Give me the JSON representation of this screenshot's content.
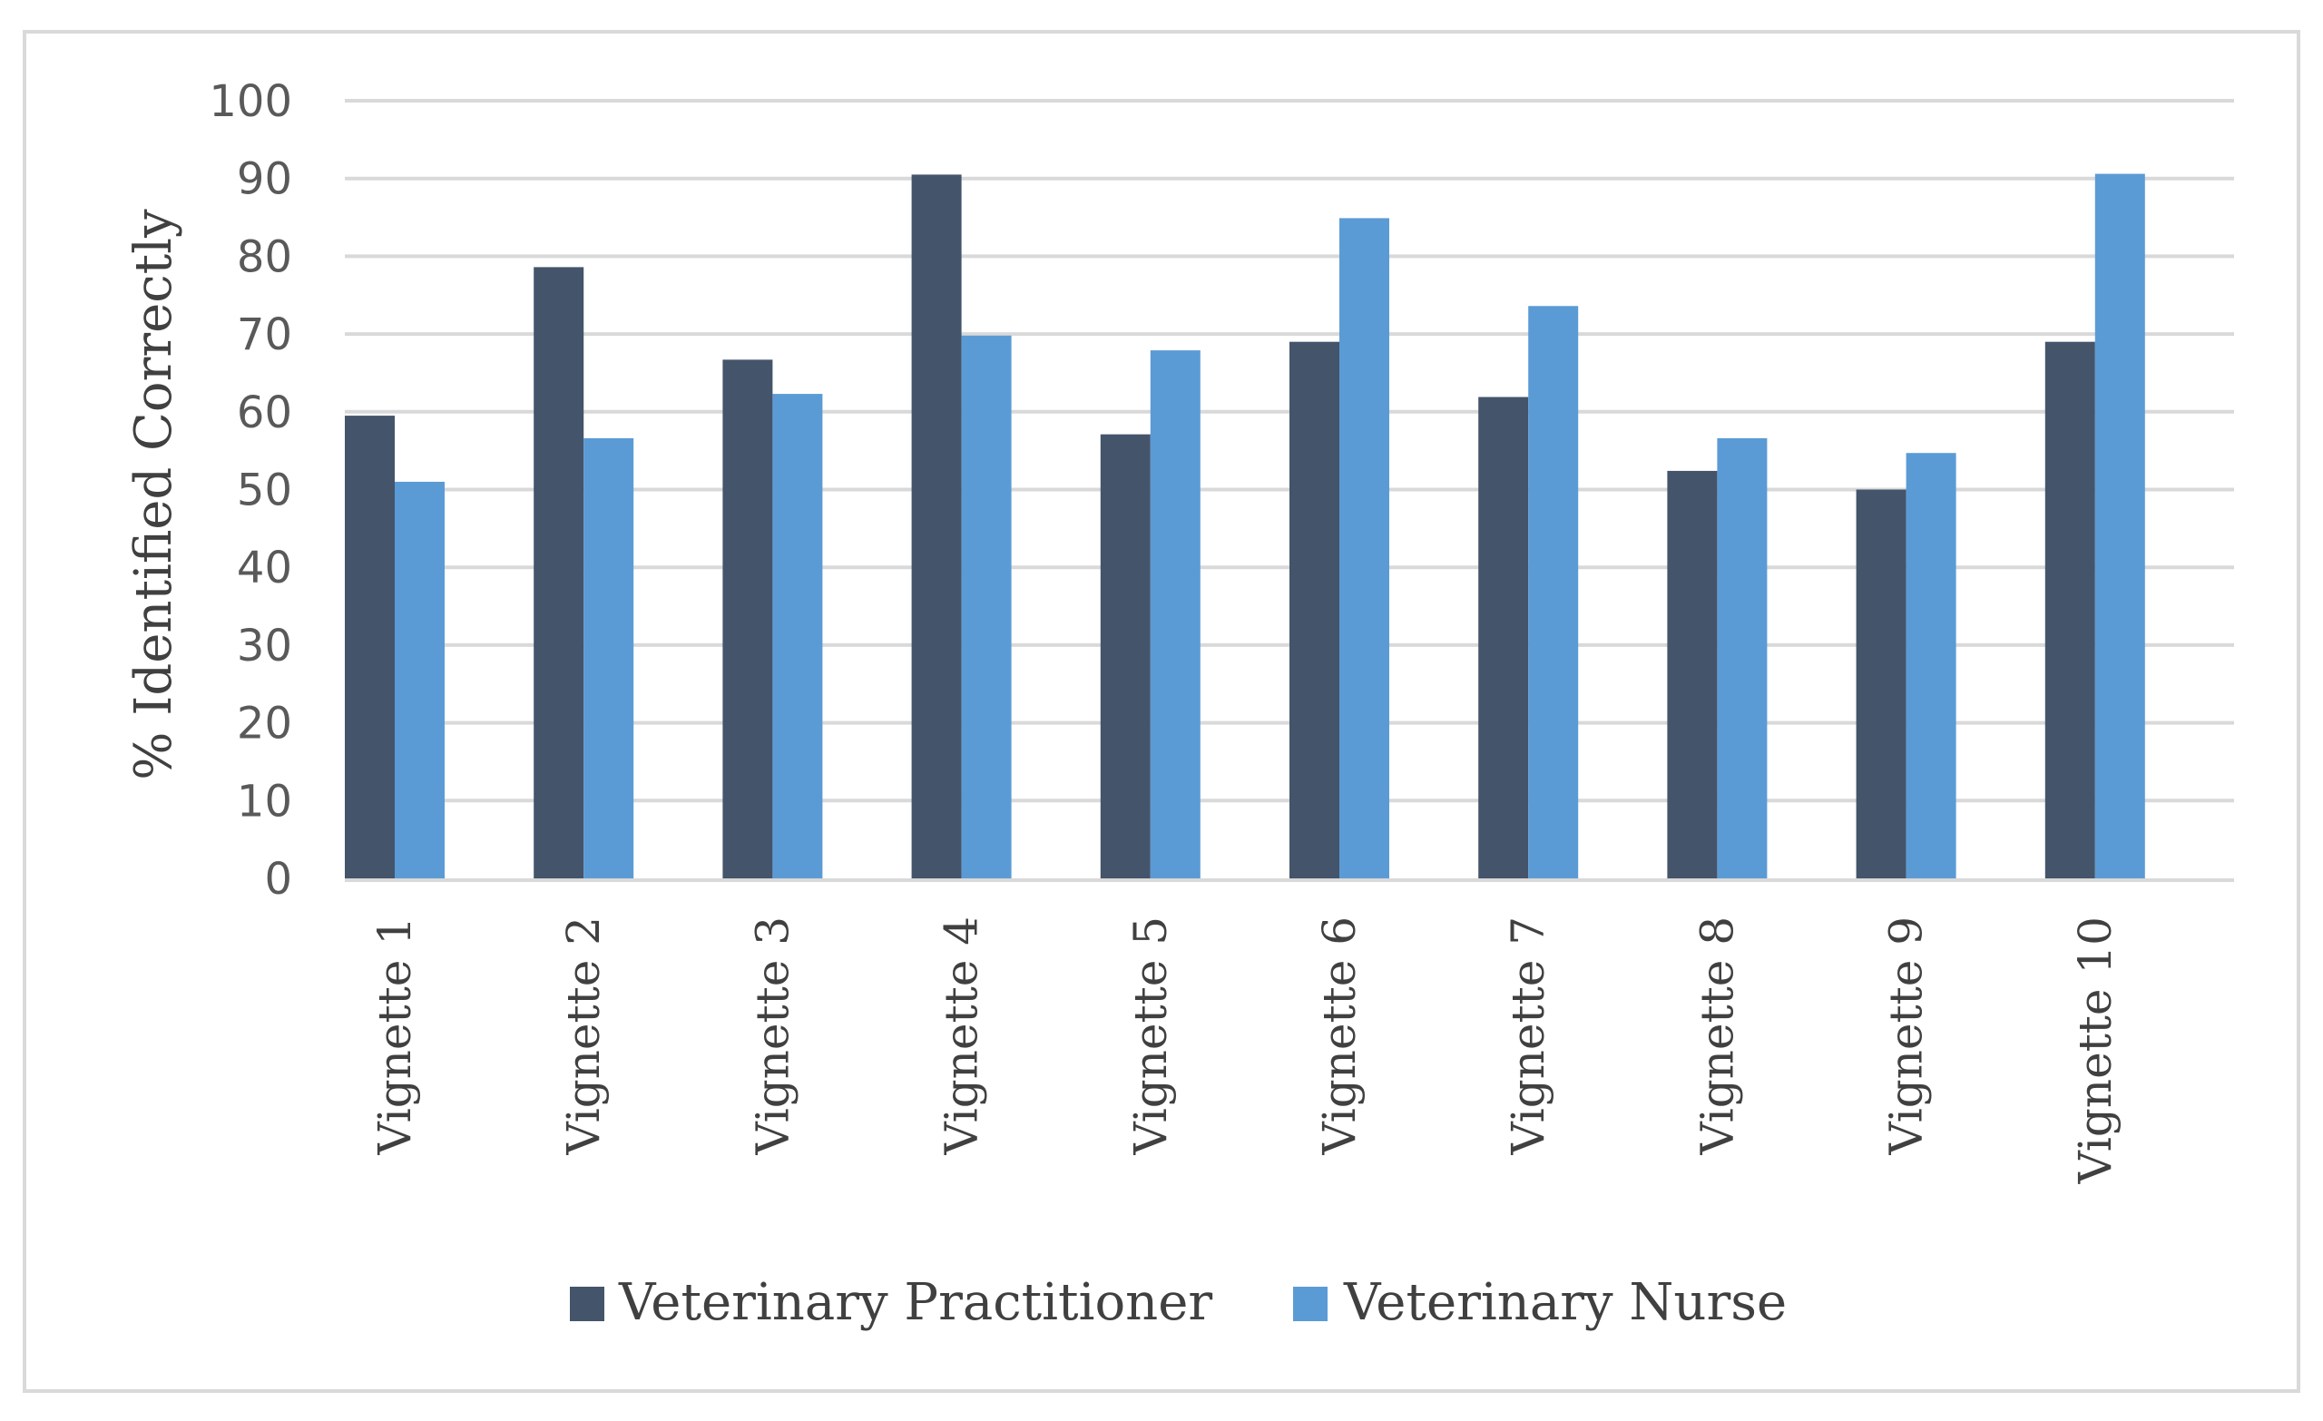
{
  "chart_data": {
    "type": "bar",
    "title": "",
    "xlabel": "",
    "ylabel": "% Identified Correctly",
    "ylim": [
      0,
      100
    ],
    "yticks": [
      0,
      10,
      20,
      30,
      40,
      50,
      60,
      70,
      80,
      90,
      100
    ],
    "grid": true,
    "legend_position": "bottom",
    "categories": [
      "Vignette 1",
      "Vignette 2",
      "Vignette 3",
      "Vignette 4",
      "Vignette 5",
      "Vignette 6",
      "Vignette 7",
      "Vignette 8",
      "Vignette 9",
      "Vignette 10"
    ],
    "series": [
      {
        "name": "Veterinary Practitioner",
        "color": "#44546a",
        "values": [
          59.5,
          78.6,
          66.7,
          90.5,
          57.1,
          69.0,
          61.9,
          52.4,
          50.0,
          69.0
        ]
      },
      {
        "name": "Veterinary Nurse",
        "color": "#5b9bd5",
        "values": [
          51.0,
          56.6,
          62.3,
          69.8,
          67.9,
          84.9,
          73.6,
          56.6,
          54.7,
          90.6
        ]
      }
    ]
  },
  "colors": {
    "gridline": "#d9d9d9",
    "frame": "#d9d9d9",
    "axis_line": "#d9d9d9"
  }
}
